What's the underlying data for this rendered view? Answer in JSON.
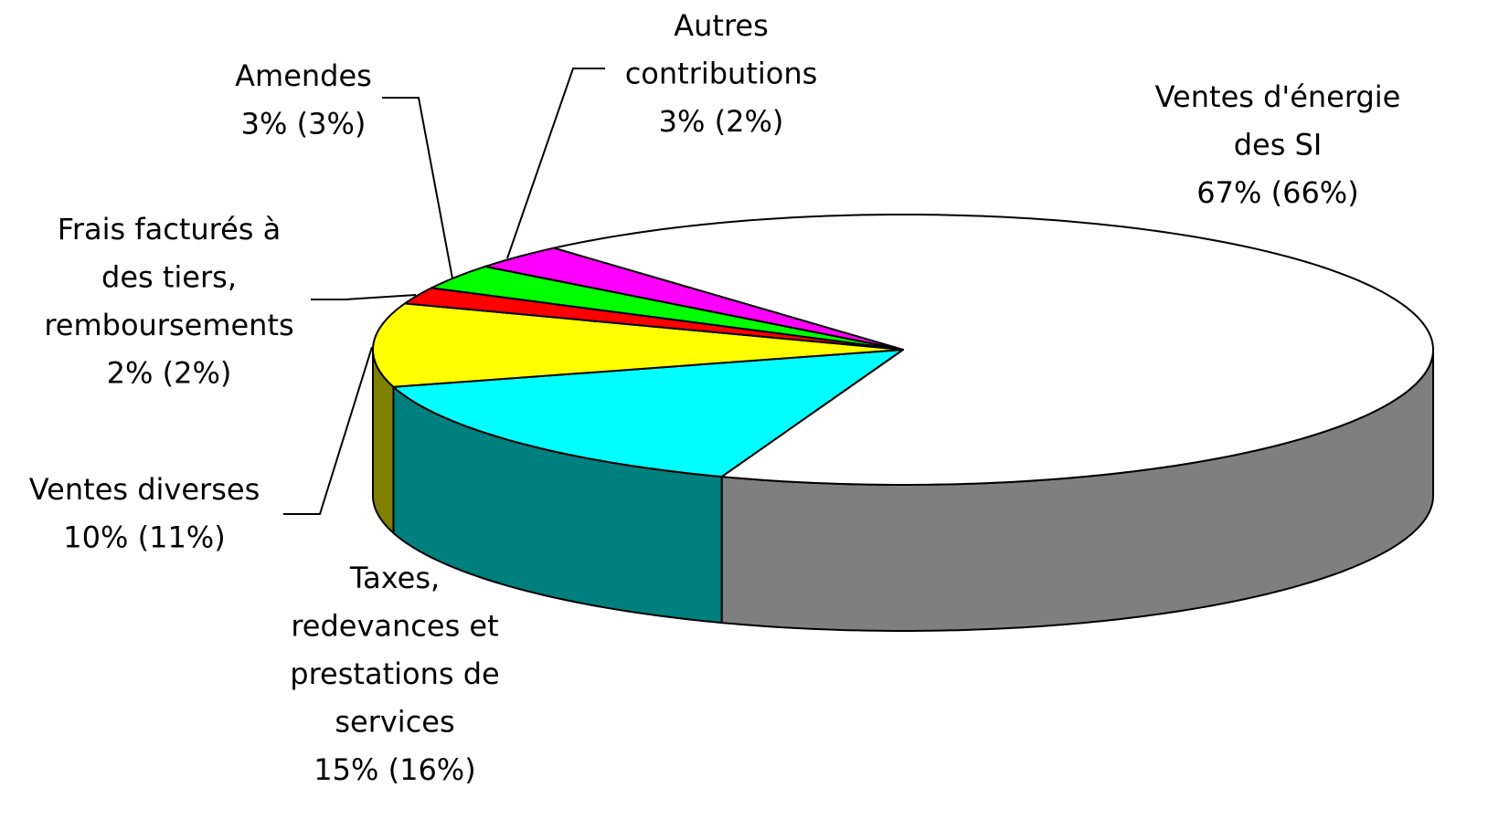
{
  "chart_data": {
    "type": "pie3d",
    "categories": [
      [
        "Ventes d'énergie",
        "des SI"
      ],
      [
        "Taxes,",
        "redevances et",
        "prestations de",
        "services"
      ],
      [
        "Ventes diverses"
      ],
      [
        "Frais facturés à",
        "des tiers,",
        "remboursements"
      ],
      [
        "Amendes"
      ],
      [
        "Autres",
        "contributions"
      ]
    ],
    "values": [
      67,
      15,
      10,
      2,
      3,
      3
    ],
    "value_labels": [
      "67% (66%)",
      "15% (16%)",
      "10% (11%)",
      "2% (2%)",
      "3% (3%)",
      "3% (2%)"
    ],
    "colors": [
      "#ffffff",
      "#00ffff",
      "#ffff00",
      "#ff0000",
      "#00ff00",
      "#ff00ff"
    ]
  }
}
